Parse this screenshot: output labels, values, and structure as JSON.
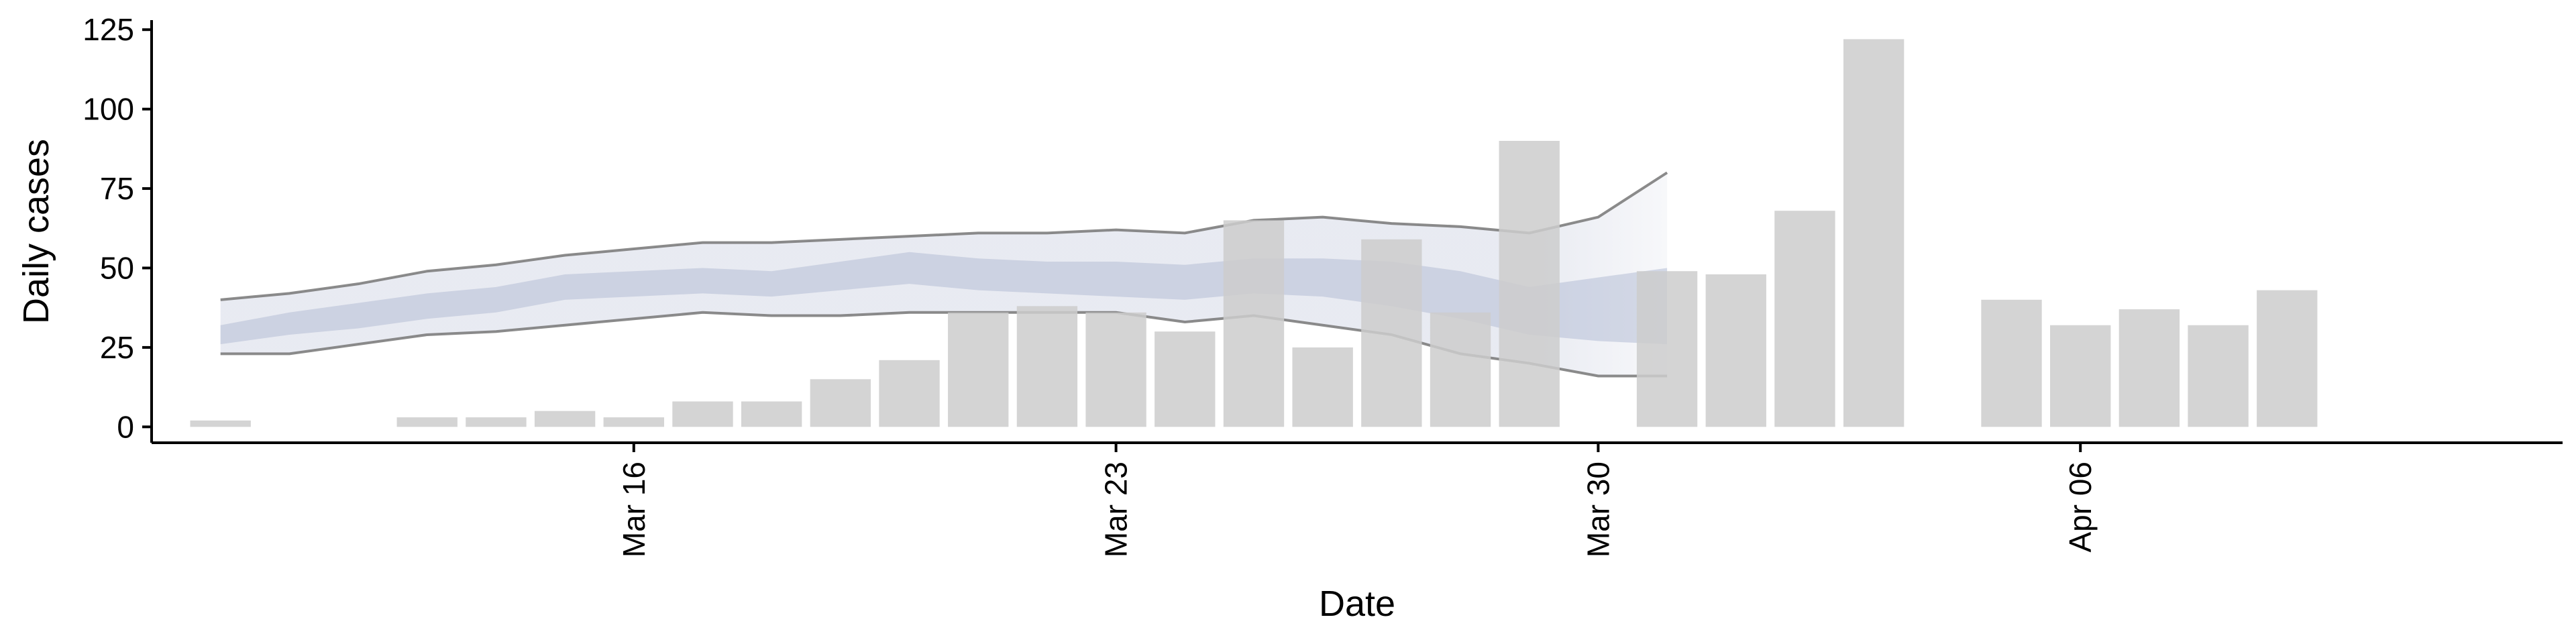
{
  "chart_data": {
    "type": "bar",
    "title": "",
    "xlabel": "Date",
    "ylabel": "Daily cases",
    "ylim": [
      -5,
      128
    ],
    "xlim": [
      "2020-03-09",
      "2020-04-13"
    ],
    "y_ticks": [
      0,
      25,
      50,
      75,
      100,
      125
    ],
    "x_ticks": [
      {
        "date": "2020-03-16",
        "label": "Mar 16"
      },
      {
        "date": "2020-03-23",
        "label": "Mar 23"
      },
      {
        "date": "2020-03-30",
        "label": "Mar 30"
      },
      {
        "date": "2020-04-06",
        "label": "Apr 06"
      }
    ],
    "grid": false,
    "colors": {
      "bars": "#cccccc",
      "band_outer": "#dfe2ec",
      "band_inner": "#b5bdd5",
      "band_outline": "#777777"
    },
    "bars": [
      {
        "date": "2020-03-10",
        "value": 2
      },
      {
        "date": "2020-03-13",
        "value": 3
      },
      {
        "date": "2020-03-14",
        "value": 3
      },
      {
        "date": "2020-03-15",
        "value": 5
      },
      {
        "date": "2020-03-16",
        "value": 3
      },
      {
        "date": "2020-03-17",
        "value": 8
      },
      {
        "date": "2020-03-18",
        "value": 8
      },
      {
        "date": "2020-03-19",
        "value": 15
      },
      {
        "date": "2020-03-20",
        "value": 21
      },
      {
        "date": "2020-03-21",
        "value": 36
      },
      {
        "date": "2020-03-22",
        "value": 38
      },
      {
        "date": "2020-03-23",
        "value": 36
      },
      {
        "date": "2020-03-24",
        "value": 30
      },
      {
        "date": "2020-03-25",
        "value": 65
      },
      {
        "date": "2020-03-26",
        "value": 25
      },
      {
        "date": "2020-03-27",
        "value": 59
      },
      {
        "date": "2020-03-28",
        "value": 36
      },
      {
        "date": "2020-03-29",
        "value": 90
      },
      {
        "date": "2020-03-31",
        "value": 49
      },
      {
        "date": "2020-04-01",
        "value": 48
      },
      {
        "date": "2020-04-02",
        "value": 68
      },
      {
        "date": "2020-04-03",
        "value": 122
      },
      {
        "date": "2020-04-05",
        "value": 40
      },
      {
        "date": "2020-04-06",
        "value": 32
      },
      {
        "date": "2020-04-07",
        "value": 37
      },
      {
        "date": "2020-04-08",
        "value": 32
      },
      {
        "date": "2020-04-09",
        "value": 43
      }
    ],
    "estimate_band": {
      "dates": [
        "2020-03-10",
        "2020-03-11",
        "2020-03-12",
        "2020-03-13",
        "2020-03-14",
        "2020-03-15",
        "2020-03-16",
        "2020-03-17",
        "2020-03-18",
        "2020-03-19",
        "2020-03-20",
        "2020-03-21",
        "2020-03-22",
        "2020-03-23",
        "2020-03-24",
        "2020-03-25",
        "2020-03-26",
        "2020-03-27",
        "2020-03-28",
        "2020-03-29",
        "2020-03-30",
        "2020-03-31",
        "2020-04-01"
      ],
      "upper_90": [
        40,
        42,
        45,
        49,
        51,
        54,
        56,
        58,
        58,
        59,
        60,
        61,
        61,
        62,
        61,
        65,
        66,
        64,
        63,
        61,
        66,
        80,
        null
      ],
      "lower_90": [
        23,
        23,
        26,
        29,
        30,
        32,
        34,
        36,
        35,
        35,
        36,
        36,
        36,
        36,
        33,
        35,
        32,
        29,
        23,
        20,
        16,
        16,
        null
      ],
      "upper_50": [
        32,
        36,
        39,
        42,
        44,
        48,
        49,
        50,
        49,
        52,
        55,
        53,
        52,
        52,
        51,
        53,
        53,
        52,
        49,
        44,
        47,
        50,
        null
      ],
      "lower_50": [
        26,
        29,
        31,
        34,
        36,
        40,
        41,
        42,
        41,
        43,
        45,
        43,
        42,
        41,
        40,
        42,
        41,
        38,
        34,
        29,
        27,
        26,
        null
      ],
      "projection_start": "2020-03-29"
    }
  }
}
